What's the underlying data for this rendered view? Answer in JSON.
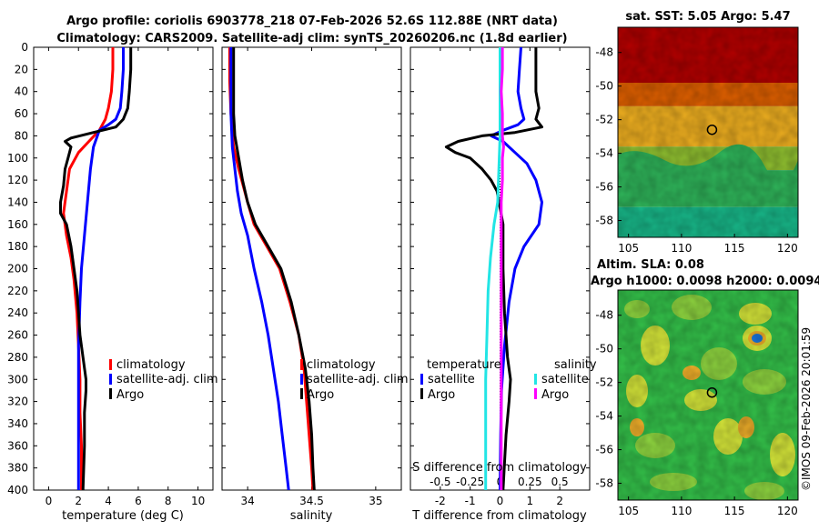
{
  "titles": {
    "line1": "Argo profile: coriolis 6903778_218 07-Feb-2026 52.6S 112.88E (NRT data)",
    "line2": "Climatology: CARS2009. Satellite-adj clim: synTS_20260206.nc (1.8d earlier)"
  },
  "depth_ticks": [
    "0",
    "20",
    "40",
    "60",
    "80",
    "100",
    "120",
    "140",
    "160",
    "180",
    "200",
    "220",
    "240",
    "260",
    "280",
    "300",
    "320",
    "340",
    "360",
    "380",
    "400"
  ],
  "colors": {
    "climatology": "#ff0000",
    "satellite": "#0000ff",
    "argo": "#000000",
    "sat_T_diff": "#0000ff",
    "sat_S_diff": "#22e5e5",
    "argo_S_diff": "#ff00ff"
  },
  "chart_data": [
    {
      "type": "line",
      "id": "temperature",
      "xlabel": "temperature (deg C)",
      "xlim": [
        -1,
        11
      ],
      "xticks": [
        "0",
        "2",
        "4",
        "6",
        "8",
        "10"
      ],
      "ylim": [
        0,
        400
      ],
      "legend": [
        "climatology",
        "satellite-adj. clim",
        "Argo"
      ],
      "series": [
        {
          "name": "climatology",
          "points": [
            [
              4.3,
              0
            ],
            [
              4.3,
              20
            ],
            [
              4.2,
              40
            ],
            [
              4.0,
              55
            ],
            [
              3.8,
              65
            ],
            [
              3.4,
              75
            ],
            [
              2.7,
              85
            ],
            [
              2.0,
              95
            ],
            [
              1.4,
              110
            ],
            [
              1.2,
              130
            ],
            [
              1.0,
              150
            ],
            [
              1.2,
              170
            ],
            [
              1.5,
              190
            ],
            [
              1.7,
              210
            ],
            [
              1.9,
              240
            ],
            [
              2.0,
              270
            ],
            [
              2.1,
              300
            ],
            [
              2.1,
              330
            ],
            [
              2.2,
              360
            ],
            [
              2.2,
              400
            ]
          ]
        },
        {
          "name": "satellite-adj. clim",
          "points": [
            [
              5.0,
              0
            ],
            [
              5.0,
              20
            ],
            [
              4.9,
              40
            ],
            [
              4.8,
              55
            ],
            [
              4.5,
              65
            ],
            [
              4.0,
              70
            ],
            [
              3.4,
              75
            ],
            [
              3.0,
              90
            ],
            [
              2.8,
              110
            ],
            [
              2.6,
              140
            ],
            [
              2.4,
              170
            ],
            [
              2.2,
              200
            ],
            [
              2.1,
              230
            ],
            [
              2.0,
              270
            ],
            [
              2.0,
              310
            ],
            [
              2.0,
              350
            ],
            [
              2.0,
              400
            ]
          ]
        },
        {
          "name": "Argo",
          "points": [
            [
              5.5,
              0
            ],
            [
              5.5,
              20
            ],
            [
              5.4,
              40
            ],
            [
              5.3,
              55
            ],
            [
              5.0,
              65
            ],
            [
              4.5,
              72
            ],
            [
              3.0,
              77
            ],
            [
              1.5,
              82
            ],
            [
              1.1,
              85
            ],
            [
              1.5,
              90
            ],
            [
              1.3,
              100
            ],
            [
              1.1,
              110
            ],
            [
              1.0,
              125
            ],
            [
              0.8,
              140
            ],
            [
              0.8,
              150
            ],
            [
              1.2,
              160
            ],
            [
              1.5,
              180
            ],
            [
              1.7,
              200
            ],
            [
              1.9,
              220
            ],
            [
              2.0,
              240
            ],
            [
              2.1,
              260
            ],
            [
              2.3,
              280
            ],
            [
              2.5,
              300
            ],
            [
              2.5,
              310
            ],
            [
              2.4,
              330
            ],
            [
              2.4,
              360
            ],
            [
              2.3,
              400
            ]
          ]
        }
      ]
    },
    {
      "type": "line",
      "id": "salinity",
      "xlabel": "salinity",
      "xlim": [
        33.8,
        35.2
      ],
      "xticks": [
        "34",
        "34.5",
        "35"
      ],
      "ylim": [
        0,
        400
      ],
      "legend": [
        "climatology",
        "satellite-adj. clim",
        "Argo"
      ],
      "series": [
        {
          "name": "climatology",
          "points": [
            [
              33.86,
              0
            ],
            [
              33.86,
              30
            ],
            [
              33.87,
              60
            ],
            [
              33.89,
              90
            ],
            [
              33.93,
              110
            ],
            [
              34.0,
              140
            ],
            [
              34.05,
              160
            ],
            [
              34.15,
              180
            ],
            [
              34.25,
              200
            ],
            [
              34.33,
              230
            ],
            [
              34.4,
              260
            ],
            [
              34.44,
              290
            ],
            [
              34.46,
              320
            ],
            [
              34.48,
              350
            ],
            [
              34.5,
              380
            ],
            [
              34.51,
              400
            ]
          ]
        },
        {
          "name": "satellite-adj. clim",
          "points": [
            [
              33.87,
              0
            ],
            [
              33.87,
              30
            ],
            [
              33.87,
              60
            ],
            [
              33.88,
              90
            ],
            [
              33.9,
              110
            ],
            [
              33.92,
              130
            ],
            [
              33.95,
              150
            ],
            [
              34.0,
              170
            ],
            [
              34.05,
              200
            ],
            [
              34.11,
              230
            ],
            [
              34.16,
              260
            ],
            [
              34.2,
              290
            ],
            [
              34.24,
              320
            ],
            [
              34.27,
              350
            ],
            [
              34.3,
              380
            ],
            [
              34.32,
              400
            ]
          ]
        },
        {
          "name": "Argo",
          "points": [
            [
              33.89,
              0
            ],
            [
              33.89,
              30
            ],
            [
              33.89,
              60
            ],
            [
              33.9,
              80
            ],
            [
              33.93,
              100
            ],
            [
              33.96,
              120
            ],
            [
              34.0,
              140
            ],
            [
              34.06,
              160
            ],
            [
              34.16,
              180
            ],
            [
              34.26,
              200
            ],
            [
              34.34,
              230
            ],
            [
              34.4,
              260
            ],
            [
              34.45,
              290
            ],
            [
              34.48,
              320
            ],
            [
              34.5,
              350
            ],
            [
              34.51,
              380
            ],
            [
              34.52,
              400
            ]
          ]
        }
      ]
    },
    {
      "type": "line",
      "id": "differences",
      "xlabel": "T difference from climatology",
      "xlim": [
        -3,
        3
      ],
      "xticks": [
        "-2",
        "-1",
        "0",
        "1",
        "2"
      ],
      "top_label": "S difference from climatology",
      "top_ticks": [
        "-0.5",
        "-0.25",
        "0",
        "0.25",
        "0.5"
      ],
      "s_xlim": [
        -0.75,
        0.75
      ],
      "ylim": [
        0,
        400
      ],
      "legend_temperature_title": "temperature",
      "legend_salinity_title": "salinity",
      "legend_temperature": [
        "satellite",
        "Argo"
      ],
      "legend_salinity": [
        "satellite",
        "Argo"
      ],
      "series": [
        {
          "name": "satellite T diff",
          "axis": "T",
          "points": [
            [
              0.7,
              0
            ],
            [
              0.65,
              20
            ],
            [
              0.6,
              40
            ],
            [
              0.7,
              55
            ],
            [
              0.8,
              65
            ],
            [
              0.6,
              70
            ],
            [
              0.1,
              75
            ],
            [
              -0.3,
              80
            ],
            [
              0.1,
              85
            ],
            [
              0.5,
              95
            ],
            [
              0.9,
              105
            ],
            [
              1.2,
              120
            ],
            [
              1.4,
              140
            ],
            [
              1.3,
              160
            ],
            [
              0.8,
              180
            ],
            [
              0.5,
              200
            ],
            [
              0.3,
              230
            ],
            [
              0.15,
              270
            ],
            [
              0.05,
              310
            ],
            [
              0.02,
              350
            ],
            [
              0.0,
              400
            ]
          ]
        },
        {
          "name": "Argo T diff",
          "axis": "T",
          "points": [
            [
              1.2,
              0
            ],
            [
              1.2,
              20
            ],
            [
              1.2,
              40
            ],
            [
              1.3,
              55
            ],
            [
              1.2,
              65
            ],
            [
              1.4,
              72
            ],
            [
              0.5,
              77
            ],
            [
              -0.6,
              80
            ],
            [
              -1.4,
              85
            ],
            [
              -1.8,
              90
            ],
            [
              -1.5,
              95
            ],
            [
              -1.0,
              100
            ],
            [
              -0.6,
              110
            ],
            [
              -0.3,
              120
            ],
            [
              -0.1,
              130
            ],
            [
              0.0,
              145
            ],
            [
              0.1,
              160
            ],
            [
              0.1,
              200
            ],
            [
              0.15,
              240
            ],
            [
              0.25,
              280
            ],
            [
              0.35,
              300
            ],
            [
              0.3,
              320
            ],
            [
              0.2,
              350
            ],
            [
              0.1,
              400
            ]
          ]
        },
        {
          "name": "satellite S diff",
          "axis": "S",
          "points": [
            [
              0.0,
              0
            ],
            [
              0.0,
              40
            ],
            [
              0.0,
              80
            ],
            [
              -0.01,
              110
            ],
            [
              -0.02,
              140
            ],
            [
              -0.05,
              160
            ],
            [
              -0.08,
              190
            ],
            [
              -0.1,
              220
            ],
            [
              -0.11,
              260
            ],
            [
              -0.12,
              300
            ],
            [
              -0.12,
              350
            ],
            [
              -0.12,
              400
            ]
          ]
        },
        {
          "name": "Argo S diff",
          "axis": "S",
          "points": [
            [
              0.02,
              0
            ],
            [
              0.02,
              20
            ],
            [
              0.01,
              40
            ],
            [
              0.02,
              60
            ],
            [
              0.02,
              80
            ],
            [
              0.03,
              90
            ],
            [
              0.02,
              100
            ],
            [
              0.02,
              120
            ],
            [
              0.01,
              140
            ],
            [
              0.01,
              180
            ],
            [
              0.01,
              220
            ],
            [
              0.01,
              260
            ],
            [
              0.01,
              300
            ],
            [
              0.01,
              340
            ],
            [
              0.01,
              380
            ],
            [
              0.01,
              400
            ]
          ]
        }
      ]
    },
    {
      "type": "heatmap",
      "id": "sst_map",
      "title": "sat. SST: 5.05 Argo: 5.47",
      "xlim": [
        104,
        121
      ],
      "ylim": [
        -59,
        -46.5
      ],
      "xticks": [
        "105",
        "110",
        "115",
        "120"
      ],
      "yticks": [
        "-48",
        "-50",
        "-52",
        "-54",
        "-56",
        "-58"
      ],
      "marker": {
        "lon": 112.88,
        "lat": -52.6
      },
      "color_bands": [
        "#b30000",
        "#e06000",
        "#f0b020",
        "#90c030",
        "#2fb55a",
        "#18b98a"
      ]
    },
    {
      "type": "heatmap",
      "id": "sla_map",
      "title": "Altim. SLA: 0.08",
      "subtitle": "Argo h1000: 0.0098 h2000: 0.0094",
      "xlim": [
        104,
        121
      ],
      "ylim": [
        -59,
        -46.5
      ],
      "xticks": [
        "105",
        "110",
        "115",
        "120"
      ],
      "yticks": [
        "-48",
        "-50",
        "-52",
        "-54",
        "-56",
        "-58"
      ],
      "marker": {
        "lon": 112.88,
        "lat": -52.6
      },
      "feature_label": "",
      "colors": [
        "#34c24a",
        "#8fd640",
        "#d7e83a",
        "#f1b02a",
        "#1a7ae8"
      ]
    }
  ],
  "watermark": "©IMOS 09-Feb-2026 20:01:59"
}
